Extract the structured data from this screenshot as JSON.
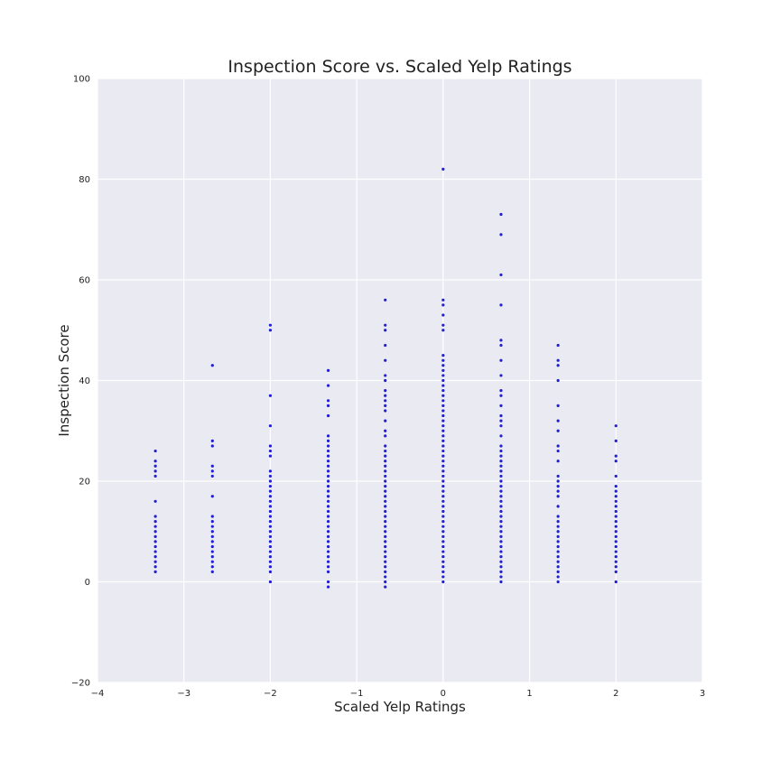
{
  "chart_data": {
    "type": "scatter",
    "title": "Inspection Score vs. Scaled Yelp Ratings",
    "xlabel": "Scaled Yelp Ratings",
    "ylabel": "Inspection Score",
    "xlim": [
      -4,
      3
    ],
    "ylim": [
      -20,
      100
    ],
    "xticks": [
      "−4",
      "−3",
      "−2",
      "−1",
      "0",
      "1",
      "2",
      "3"
    ],
    "xtick_values": [
      -4,
      -3,
      -2,
      -1,
      0,
      1,
      2,
      3
    ],
    "yticks": [
      "−20",
      "0",
      "20",
      "40",
      "60",
      "80",
      "100"
    ],
    "ytick_values": [
      -20,
      0,
      20,
      40,
      60,
      80,
      100
    ],
    "grid": true,
    "background_color": "#eaeaf2",
    "point_color": "#1f1fd6",
    "series": [
      {
        "x_groups": [
          {
            "x": -3.33,
            "y": [
              2,
              3,
              4,
              5,
              6,
              7,
              8,
              9,
              10,
              11,
              12,
              13,
              16,
              21,
              22,
              23,
              24,
              26
            ]
          },
          {
            "x": -2.67,
            "y": [
              2,
              3,
              4,
              5,
              6,
              7,
              8,
              9,
              10,
              11,
              12,
              13,
              17,
              21,
              22,
              23,
              27,
              28,
              43
            ]
          },
          {
            "x": -2.0,
            "y": [
              0,
              2,
              3,
              4,
              5,
              6,
              7,
              8,
              9,
              10,
              11,
              12,
              13,
              14,
              15,
              16,
              17,
              18,
              19,
              20,
              21,
              22,
              25,
              26,
              27,
              31,
              37,
              50,
              51
            ]
          },
          {
            "x": -1.33,
            "y": [
              -1,
              0,
              2,
              3,
              4,
              5,
              6,
              7,
              8,
              9,
              10,
              11,
              12,
              13,
              14,
              15,
              16,
              17,
              18,
              19,
              20,
              21,
              22,
              23,
              24,
              25,
              26,
              27,
              28,
              29,
              33,
              35,
              36,
              39,
              42
            ]
          },
          {
            "x": -0.67,
            "y": [
              -1,
              0,
              1,
              2,
              3,
              4,
              5,
              6,
              7,
              8,
              9,
              10,
              11,
              12,
              13,
              14,
              15,
              16,
              17,
              18,
              19,
              20,
              21,
              22,
              23,
              24,
              25,
              26,
              27,
              29,
              30,
              32,
              34,
              35,
              36,
              37,
              38,
              40,
              41,
              44,
              47,
              50,
              51,
              56
            ]
          },
          {
            "x": 0.0,
            "y": [
              0,
              1,
              2,
              3,
              4,
              5,
              6,
              7,
              8,
              9,
              10,
              11,
              12,
              13,
              14,
              15,
              16,
              17,
              18,
              19,
              20,
              21,
              22,
              23,
              24,
              25,
              26,
              27,
              28,
              29,
              30,
              31,
              32,
              33,
              34,
              35,
              36,
              37,
              38,
              39,
              40,
              41,
              42,
              43,
              44,
              45,
              50,
              51,
              53,
              55,
              56,
              82
            ]
          },
          {
            "x": 0.67,
            "y": [
              0,
              1,
              2,
              3,
              4,
              5,
              6,
              7,
              8,
              9,
              10,
              11,
              12,
              13,
              14,
              15,
              16,
              17,
              18,
              19,
              20,
              21,
              22,
              23,
              24,
              25,
              26,
              27,
              29,
              31,
              32,
              33,
              35,
              37,
              38,
              41,
              44,
              47,
              48,
              55,
              61,
              69,
              73
            ]
          },
          {
            "x": 1.33,
            "y": [
              0,
              1,
              2,
              3,
              4,
              5,
              6,
              7,
              8,
              9,
              10,
              11,
              12,
              13,
              15,
              17,
              18,
              19,
              20,
              21,
              24,
              26,
              27,
              30,
              32,
              35,
              40,
              43,
              44,
              47
            ]
          },
          {
            "x": 2.0,
            "y": [
              0,
              2,
              3,
              4,
              5,
              6,
              7,
              8,
              9,
              10,
              11,
              12,
              13,
              14,
              15,
              16,
              17,
              18,
              19,
              21,
              24,
              25,
              28,
              31
            ]
          }
        ]
      }
    ]
  }
}
